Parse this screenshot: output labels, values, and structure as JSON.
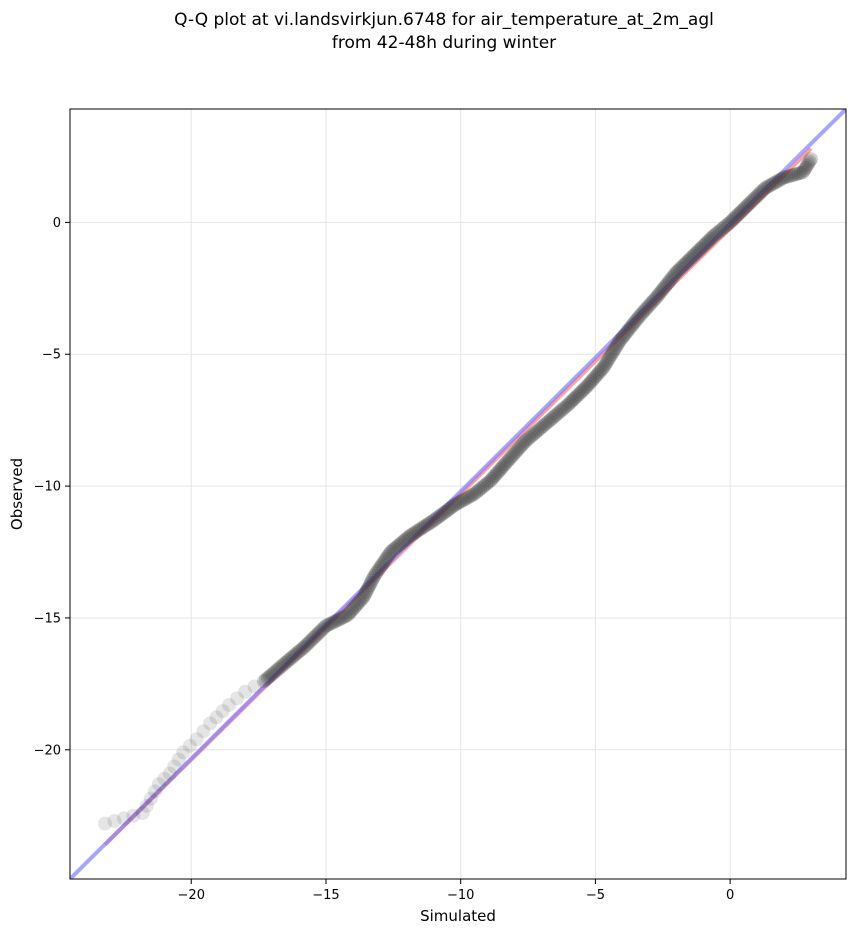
{
  "chart_data": {
    "type": "scatter",
    "title_lines": [
      "Q-Q plot at vi.landsvirkjun.6748 for air_temperature_at_2m_agl",
      "from 42-48h during winter"
    ],
    "xlabel": "Simulated",
    "ylabel": "Observed",
    "xlim": [
      -24.5,
      4.3
    ],
    "ylim": [
      -24.9,
      4.3
    ],
    "xticks": [
      -20,
      -15,
      -10,
      -5,
      0
    ],
    "yticks": [
      0,
      -5,
      -10,
      -15,
      -20
    ],
    "xtick_labels": [
      "−20",
      "−15",
      "−10",
      "−5",
      "0"
    ],
    "ytick_labels": [
      "0",
      "−5",
      "−10",
      "−15",
      "−20"
    ],
    "grid": true,
    "reference_line": {
      "points": [
        [
          -24.5,
          -24.9
        ],
        [
          4.3,
          4.3
        ]
      ],
      "color": "#8080ff"
    },
    "fit_line": {
      "points": [
        [
          -23.2,
          -23.6
        ],
        [
          3.0,
          2.8
        ]
      ],
      "color": "#ff8080"
    },
    "quantile_anchors": [
      [
        -23.2,
        -22.8
      ],
      [
        -21.8,
        -22.4
      ],
      [
        -21.2,
        -21.3
      ],
      [
        -20.8,
        -20.9
      ],
      [
        -20.3,
        -20.1
      ],
      [
        -19.8,
        -19.6
      ],
      [
        -19.3,
        -19.0
      ],
      [
        -18.6,
        -18.3
      ],
      [
        -18.0,
        -17.8
      ],
      [
        -17.3,
        -17.4
      ],
      [
        -16.5,
        -16.7
      ],
      [
        -15.8,
        -16.1
      ],
      [
        -15.0,
        -15.3
      ],
      [
        -14.2,
        -14.9
      ],
      [
        -13.6,
        -14.2
      ],
      [
        -13.2,
        -13.4
      ],
      [
        -12.6,
        -12.5
      ],
      [
        -11.9,
        -11.9
      ],
      [
        -11.0,
        -11.3
      ],
      [
        -10.2,
        -10.7
      ],
      [
        -9.5,
        -10.3
      ],
      [
        -8.9,
        -9.8
      ],
      [
        -8.3,
        -9.1
      ],
      [
        -7.6,
        -8.3
      ],
      [
        -6.8,
        -7.6
      ],
      [
        -6.0,
        -6.9
      ],
      [
        -5.3,
        -6.2
      ],
      [
        -4.7,
        -5.5
      ],
      [
        -4.1,
        -4.5
      ],
      [
        -3.4,
        -3.6
      ],
      [
        -2.7,
        -2.8
      ],
      [
        -2.0,
        -1.9
      ],
      [
        -1.3,
        -1.2
      ],
      [
        -0.6,
        -0.5
      ],
      [
        0.0,
        0.0
      ],
      [
        0.7,
        0.7
      ],
      [
        1.3,
        1.3
      ],
      [
        2.0,
        1.7
      ],
      [
        2.7,
        1.9
      ],
      [
        3.0,
        2.4
      ]
    ],
    "point_color": "#333333"
  }
}
